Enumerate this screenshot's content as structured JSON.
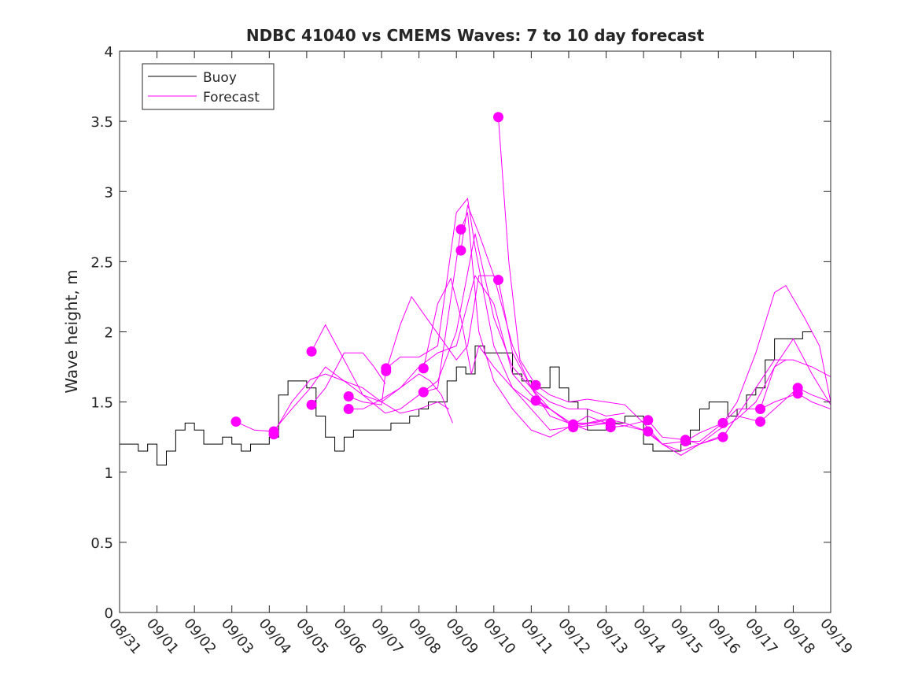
{
  "chart_data": {
    "type": "line",
    "title": "NDBC 41040 vs CMEMS Waves: 7 to 10 day forecast",
    "xlabel": "",
    "ylabel": "Wave height, m",
    "x_ticks": [
      "08/31",
      "09/01",
      "09/02",
      "09/03",
      "09/04",
      "09/05",
      "09/06",
      "09/07",
      "09/08",
      "09/09",
      "09/10",
      "09/11",
      "09/12",
      "09/13",
      "09/14",
      "09/15",
      "09/16",
      "09/17",
      "09/18",
      "09/19"
    ],
    "xlim_days": [
      0,
      19
    ],
    "ylim": [
      0,
      4
    ],
    "y_ticks": [
      "0",
      "0.5",
      "1",
      "1.5",
      "2",
      "2.5",
      "3",
      "3.5",
      "4"
    ],
    "legend": {
      "placement": "top-left",
      "entries": [
        "Buoy",
        "Forecast"
      ]
    },
    "colors": {
      "buoy": "#000000",
      "forecast": "#ff00ff"
    },
    "buoy": {
      "name": "Buoy",
      "day_step": 0.25,
      "values": [
        1.2,
        1.2,
        1.15,
        1.2,
        1.05,
        1.15,
        1.3,
        1.35,
        1.3,
        1.2,
        1.2,
        1.25,
        1.2,
        1.15,
        1.2,
        1.2,
        1.25,
        1.55,
        1.65,
        1.65,
        1.6,
        1.4,
        1.25,
        1.15,
        1.25,
        1.3,
        1.3,
        1.3,
        1.3,
        1.35,
        1.35,
        1.4,
        1.45,
        1.5,
        1.5,
        1.65,
        1.75,
        1.7,
        1.9,
        1.85,
        1.85,
        1.85,
        1.7,
        1.65,
        1.6,
        1.6,
        1.75,
        1.6,
        1.5,
        1.45,
        1.3,
        1.3,
        1.35,
        1.35,
        1.4,
        1.4,
        1.2,
        1.15,
        1.15,
        1.15,
        1.2,
        1.3,
        1.45,
        1.5,
        1.5,
        1.4,
        1.45,
        1.55,
        1.6,
        1.8,
        1.95,
        1.95,
        1.95,
        2.0
      ]
    },
    "forecast_series": [
      [
        [
          3.1,
          1.36
        ],
        [
          3.6,
          1.3
        ],
        [
          4.1,
          1.29
        ],
        [
          4.6,
          1.45
        ],
        [
          5.1,
          1.6
        ],
        [
          5.5,
          1.75
        ],
        [
          6,
          1.65
        ],
        [
          6.5,
          1.55
        ],
        [
          7,
          1.5
        ],
        [
          7.5,
          1.42
        ],
        [
          8,
          1.45
        ],
        [
          8.5,
          1.5
        ],
        [
          8.8,
          1.45
        ]
      ],
      [
        [
          4.1,
          1.27
        ],
        [
          4.6,
          1.5
        ],
        [
          5.1,
          1.66
        ],
        [
          5.5,
          1.7
        ],
        [
          6,
          1.65
        ],
        [
          6.5,
          1.6
        ],
        [
          7,
          1.5
        ],
        [
          7.5,
          1.6
        ],
        [
          8,
          1.75
        ],
        [
          8.5,
          1.85
        ],
        [
          9,
          1.9
        ],
        [
          9.5,
          2.4
        ],
        [
          10,
          2.2
        ],
        [
          10.5,
          1.7
        ],
        [
          11,
          1.55
        ],
        [
          11.5,
          1.45
        ]
      ],
      [
        [
          5.13,
          1.86
        ],
        [
          5.5,
          2.05
        ],
        [
          6,
          1.8
        ],
        [
          6.5,
          1.55
        ],
        [
          7.1,
          1.42
        ],
        [
          7.5,
          1.45
        ],
        [
          8,
          1.55
        ],
        [
          8.5,
          1.65
        ],
        [
          9,
          2.0
        ],
        [
          9.5,
          2.7
        ],
        [
          10,
          2.1
        ],
        [
          10.5,
          1.75
        ],
        [
          11,
          1.6
        ],
        [
          11.5,
          1.4
        ],
        [
          12,
          1.35
        ],
        [
          12.5,
          1.3
        ]
      ],
      [
        [
          5.13,
          1.48
        ],
        [
          5.5,
          1.6
        ],
        [
          6,
          1.85
        ],
        [
          6.5,
          1.85
        ],
        [
          6.8,
          1.75
        ],
        [
          7.1,
          1.63
        ]
      ],
      [
        [
          6.12,
          1.54
        ],
        [
          6.5,
          1.5
        ],
        [
          7,
          1.48
        ],
        [
          7.12,
          1.74
        ],
        [
          7.5,
          1.82
        ],
        [
          8,
          1.82
        ],
        [
          8.5,
          1.9
        ],
        [
          9,
          2.85
        ],
        [
          9.3,
          2.95
        ],
        [
          9.5,
          2.6
        ],
        [
          10,
          1.9
        ],
        [
          10.5,
          1.6
        ],
        [
          11,
          1.5
        ],
        [
          11.5,
          1.45
        ],
        [
          12,
          1.35
        ]
      ],
      [
        [
          6.12,
          1.45
        ],
        [
          6.5,
          1.45
        ],
        [
          7,
          1.52
        ],
        [
          7.5,
          1.6
        ],
        [
          8,
          1.7
        ],
        [
          8.3,
          1.65
        ],
        [
          8.6,
          1.55
        ],
        [
          8.9,
          1.35
        ]
      ],
      [
        [
          7.12,
          1.72
        ],
        [
          7.5,
          2.05
        ],
        [
          7.8,
          2.25
        ],
        [
          8.2,
          2.1
        ],
        [
          8.6,
          1.95
        ],
        [
          9,
          1.8
        ],
        [
          9.3,
          1.9
        ],
        [
          9.6,
          2.4
        ],
        [
          10,
          2.4
        ],
        [
          10.5,
          1.9
        ],
        [
          11,
          1.6
        ],
        [
          11.5,
          1.45
        ],
        [
          12,
          1.35
        ],
        [
          12.5,
          1.35
        ],
        [
          13,
          1.35
        ]
      ],
      [
        [
          8.12,
          1.74
        ],
        [
          8.5,
          2.2
        ],
        [
          8.85,
          2.38
        ],
        [
          9.12,
          2.1
        ],
        [
          9.4,
          1.7
        ],
        [
          9.6,
          1.9
        ],
        [
          10,
          1.75
        ],
        [
          10.5,
          1.6
        ],
        [
          11,
          1.45
        ],
        [
          11.5,
          1.3
        ],
        [
          12,
          1.32
        ],
        [
          12.5,
          1.4
        ],
        [
          13,
          1.35
        ]
      ],
      [
        [
          8.12,
          1.57
        ],
        [
          8.5,
          1.6
        ],
        [
          9.12,
          2.73
        ],
        [
          9.3,
          2.85
        ],
        [
          9.6,
          2.0
        ],
        [
          10,
          1.65
        ],
        [
          10.5,
          1.45
        ],
        [
          11,
          1.3
        ],
        [
          11.5,
          1.25
        ],
        [
          12,
          1.32
        ],
        [
          13,
          1.37
        ]
      ],
      [
        [
          9.12,
          2.58
        ],
        [
          9.3,
          2.9
        ],
        [
          9.6,
          2.7
        ],
        [
          10,
          2.4
        ],
        [
          10.12,
          2.37
        ],
        [
          10.5,
          1.85
        ],
        [
          11,
          1.6
        ],
        [
          11.5,
          1.5
        ],
        [
          12,
          1.45
        ],
        [
          12.5,
          1.45
        ],
        [
          13,
          1.4
        ],
        [
          13.5,
          1.42
        ]
      ],
      [
        [
          10.12,
          3.53
        ],
        [
          10.4,
          2.5
        ],
        [
          10.7,
          1.8
        ],
        [
          11.12,
          1.62
        ],
        [
          11.5,
          1.55
        ],
        [
          12,
          1.5
        ],
        [
          12.5,
          1.52
        ],
        [
          13,
          1.5
        ],
        [
          13.5,
          1.48
        ],
        [
          14,
          1.35
        ],
        [
          14.5,
          1.2
        ]
      ],
      [
        [
          11.12,
          1.51
        ],
        [
          11.5,
          1.45
        ],
        [
          12.12,
          1.34
        ],
        [
          12.5,
          1.35
        ],
        [
          13,
          1.38
        ],
        [
          13.5,
          1.35
        ],
        [
          14,
          1.3
        ],
        [
          14.5,
          1.2
        ],
        [
          15,
          1.15
        ],
        [
          15.5,
          1.2
        ],
        [
          16,
          1.25
        ]
      ],
      [
        [
          12.12,
          1.32
        ],
        [
          12.5,
          1.33
        ],
        [
          13.12,
          1.35
        ],
        [
          13.5,
          1.33
        ],
        [
          14.12,
          1.29
        ],
        [
          14.5,
          1.2
        ],
        [
          15,
          1.12
        ],
        [
          15.5,
          1.2
        ],
        [
          16,
          1.3
        ],
        [
          16.5,
          1.38
        ],
        [
          17,
          1.5
        ],
        [
          17.5,
          1.75
        ],
        [
          17.8,
          1.8
        ]
      ],
      [
        [
          13.12,
          1.32
        ],
        [
          13.5,
          1.33
        ],
        [
          14.12,
          1.37
        ],
        [
          14.5,
          1.25
        ],
        [
          15.12,
          1.23
        ],
        [
          15.5,
          1.2
        ],
        [
          16.12,
          1.25
        ],
        [
          16.5,
          1.4
        ],
        [
          17,
          1.6
        ],
        [
          17.5,
          1.8
        ],
        [
          18,
          1.8
        ],
        [
          18.5,
          1.75
        ],
        [
          19,
          1.68
        ]
      ],
      [
        [
          14.12,
          1.29
        ],
        [
          14.5,
          1.2
        ],
        [
          15.12,
          1.22
        ],
        [
          15.5,
          1.22
        ],
        [
          16.12,
          1.35
        ],
        [
          16.5,
          1.5
        ],
        [
          17,
          1.85
        ],
        [
          17.5,
          2.28
        ],
        [
          17.8,
          2.33
        ],
        [
          18.3,
          2.1
        ],
        [
          18.7,
          1.9
        ],
        [
          19,
          1.5
        ]
      ],
      [
        [
          15.12,
          1.22
        ],
        [
          15.5,
          1.28
        ],
        [
          16.12,
          1.35
        ],
        [
          16.5,
          1.45
        ],
        [
          17.12,
          1.45
        ],
        [
          17.5,
          1.75
        ],
        [
          18,
          1.95
        ],
        [
          18.5,
          1.7
        ],
        [
          19,
          1.48
        ]
      ],
      [
        [
          16.12,
          1.25
        ],
        [
          16.5,
          1.4
        ],
        [
          17.12,
          1.36
        ],
        [
          17.5,
          1.45
        ],
        [
          18.12,
          1.6
        ],
        [
          18.5,
          1.55
        ],
        [
          19,
          1.5
        ]
      ],
      [
        [
          17.12,
          1.45
        ],
        [
          17.5,
          1.5
        ],
        [
          18.12,
          1.56
        ],
        [
          18.5,
          1.5
        ],
        [
          19,
          1.45
        ]
      ]
    ],
    "forecast_markers": [
      [
        3.11,
        1.36
      ],
      [
        4.12,
        1.29
      ],
      [
        4.12,
        1.27
      ],
      [
        5.13,
        1.86
      ],
      [
        5.13,
        1.48
      ],
      [
        6.12,
        1.54
      ],
      [
        6.12,
        1.45
      ],
      [
        7.12,
        1.74
      ],
      [
        7.12,
        1.72
      ],
      [
        8.12,
        1.74
      ],
      [
        8.12,
        1.57
      ],
      [
        9.12,
        2.73
      ],
      [
        9.12,
        2.58
      ],
      [
        10.12,
        3.53
      ],
      [
        10.12,
        2.37
      ],
      [
        11.12,
        1.62
      ],
      [
        11.12,
        1.51
      ],
      [
        12.12,
        1.34
      ],
      [
        12.12,
        1.32
      ],
      [
        13.12,
        1.35
      ],
      [
        13.12,
        1.32
      ],
      [
        14.12,
        1.37
      ],
      [
        14.12,
        1.29
      ],
      [
        15.12,
        1.23
      ],
      [
        15.12,
        1.22
      ],
      [
        16.12,
        1.35
      ],
      [
        16.12,
        1.25
      ],
      [
        17.12,
        1.45
      ],
      [
        17.12,
        1.36
      ],
      [
        18.12,
        1.6
      ],
      [
        18.12,
        1.56
      ]
    ]
  }
}
